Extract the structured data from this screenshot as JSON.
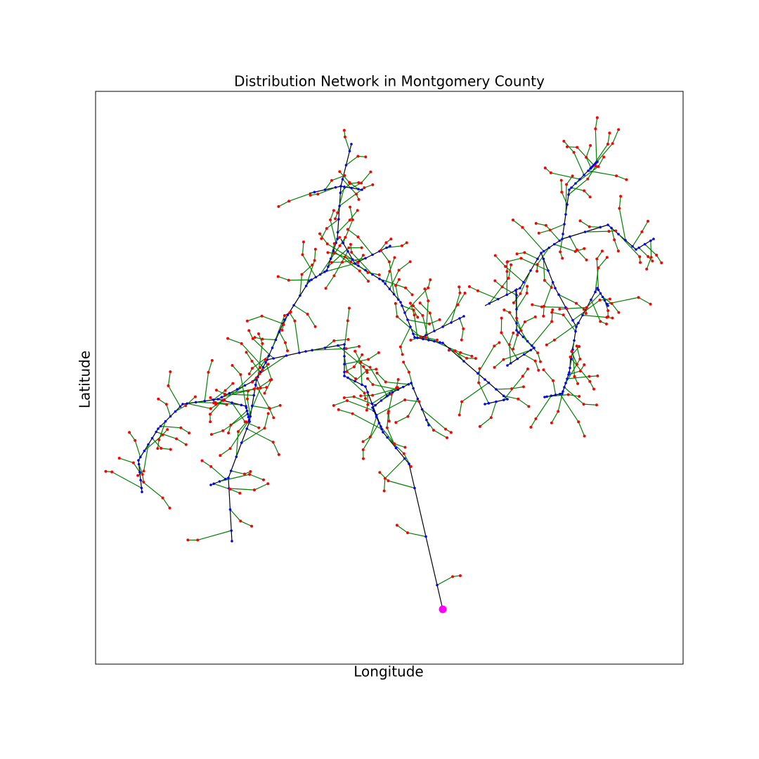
{
  "chart_data": {
    "type": "network",
    "title": "Distribution Network in Montgomery County",
    "xlabel": "Longitude",
    "ylabel": "Latitude"
  }
}
